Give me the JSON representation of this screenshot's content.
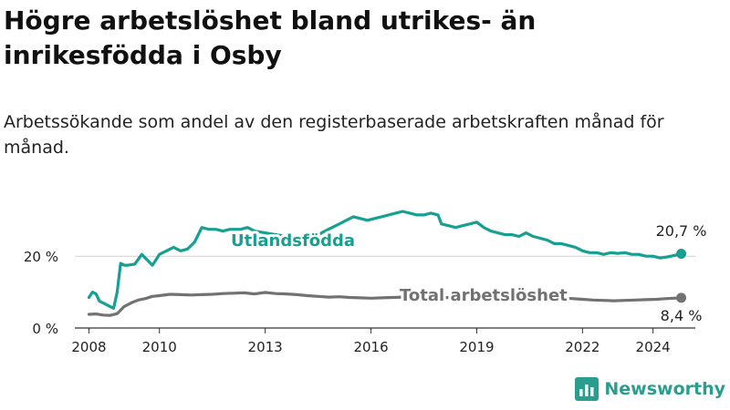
{
  "title": "Högre arbetslöshet bland utrikes- än inrikesfödda i Osby",
  "subtitle": "Arbetssökande som andel av den registerbaserade arbetskraften månad för månad.",
  "brand": {
    "name": "Newsworthy",
    "icon": "newsworthy-logo-icon"
  },
  "colors": {
    "foreign": "#17a092",
    "total": "#727272",
    "grid": "#d0d0d0",
    "axis": "#333333"
  },
  "chart_data": {
    "type": "line",
    "title": "Högre arbetslöshet bland utrikes- än inrikesfödda i Osby",
    "xlabel": "",
    "ylabel": "",
    "xlim": [
      2007.6,
      2025.2
    ],
    "ylim": [
      0,
      33
    ],
    "x_ticks": [
      2008,
      2010,
      2013,
      2016,
      2019,
      2022,
      2024
    ],
    "x_tick_labels": [
      "2008",
      "2010",
      "2013",
      "2016",
      "2019",
      "2022",
      "2024"
    ],
    "y_ticks": [
      0,
      20
    ],
    "y_tick_labels": [
      "0 %",
      "20 %"
    ],
    "grid": "horizontal",
    "series": [
      {
        "name": "Utlandsfödda",
        "color": "#17a092",
        "end_label": "20,7 %",
        "x": [
          2008.0,
          2008.1,
          2008.2,
          2008.3,
          2008.4,
          2008.5,
          2008.6,
          2008.7,
          2008.8,
          2008.9,
          2009.0,
          2009.1,
          2009.3,
          2009.5,
          2009.7,
          2009.8,
          2009.9,
          2010.0,
          2010.2,
          2010.4,
          2010.6,
          2010.8,
          2011.0,
          2011.2,
          2011.4,
          2011.6,
          2011.8,
          2012.0,
          2012.3,
          2012.5,
          2012.7,
          2013.0,
          2013.3,
          2013.6,
          2013.9,
          2014.2,
          2014.5,
          2014.7,
          2014.9,
          2015.1,
          2015.3,
          2015.5,
          2015.7,
          2015.9,
          2016.1,
          2016.3,
          2016.5,
          2016.7,
          2016.9,
          2017.1,
          2017.3,
          2017.5,
          2017.7,
          2017.9,
          2018.0,
          2018.2,
          2018.4,
          2018.6,
          2018.8,
          2019.0,
          2019.2,
          2019.4,
          2019.6,
          2019.8,
          2020.0,
          2020.2,
          2020.4,
          2020.6,
          2020.8,
          2021.0,
          2021.2,
          2021.4,
          2021.6,
          2021.8,
          2022.0,
          2022.2,
          2022.4,
          2022.6,
          2022.8,
          2023.0,
          2023.2,
          2023.4,
          2023.6,
          2023.8,
          2024.0,
          2024.2,
          2024.4,
          2024.6,
          2024.8
        ],
        "values": [
          8.5,
          10.0,
          9.5,
          7.5,
          7.0,
          6.5,
          6.0,
          5.5,
          10.0,
          18.0,
          17.5,
          17.5,
          17.8,
          20.5,
          18.5,
          17.5,
          19.0,
          20.5,
          21.5,
          22.5,
          21.5,
          22.0,
          24.0,
          28.0,
          27.5,
          27.5,
          27.0,
          27.5,
          27.5,
          28.0,
          27.0,
          26.5,
          26.0,
          25.5,
          25.5,
          25.0,
          26.0,
          27.0,
          28.0,
          29.0,
          30.0,
          31.0,
          30.5,
          30.0,
          30.5,
          31.0,
          31.5,
          32.0,
          32.5,
          32.0,
          31.5,
          31.5,
          32.0,
          31.5,
          29.0,
          28.5,
          28.0,
          28.5,
          29.0,
          29.5,
          28.0,
          27.0,
          26.5,
          26.0,
          26.0,
          25.5,
          26.5,
          25.5,
          25.0,
          24.5,
          23.5,
          23.5,
          23.0,
          22.5,
          21.5,
          21.0,
          21.0,
          20.5,
          21.0,
          20.8,
          21.0,
          20.5,
          20.5,
          20.0,
          20.0,
          19.5,
          19.8,
          20.2,
          20.7
        ]
      },
      {
        "name": "Total arbetslöshet",
        "color": "#727272",
        "end_label": "8,4 %",
        "x": [
          2008.0,
          2008.2,
          2008.4,
          2008.6,
          2008.8,
          2009.0,
          2009.2,
          2009.4,
          2009.6,
          2009.8,
          2010.0,
          2010.3,
          2010.6,
          2010.9,
          2011.2,
          2011.5,
          2011.8,
          2012.1,
          2012.4,
          2012.7,
          2013.0,
          2013.3,
          2013.6,
          2013.9,
          2014.2,
          2014.5,
          2014.8,
          2015.1,
          2015.4,
          2015.7,
          2016.0,
          2016.3,
          2016.6,
          2016.9,
          2017.2,
          2017.5,
          2017.8,
          2018.1,
          2018.4,
          2018.7,
          2019.0,
          2019.3,
          2019.6,
          2019.9,
          2020.2,
          2020.5,
          2020.8,
          2021.1,
          2021.4,
          2021.7,
          2022.0,
          2022.3,
          2022.6,
          2022.9,
          2023.2,
          2023.5,
          2023.8,
          2024.1,
          2024.4,
          2024.8
        ],
        "values": [
          3.8,
          3.9,
          3.6,
          3.5,
          4.0,
          6.0,
          7.0,
          7.8,
          8.2,
          8.8,
          9.0,
          9.4,
          9.3,
          9.2,
          9.3,
          9.4,
          9.6,
          9.7,
          9.8,
          9.5,
          9.9,
          9.6,
          9.5,
          9.3,
          9.0,
          8.8,
          8.6,
          8.7,
          8.5,
          8.4,
          8.3,
          8.4,
          8.5,
          8.6,
          8.7,
          8.8,
          8.6,
          8.5,
          8.4,
          8.4,
          8.5,
          8.6,
          8.7,
          8.8,
          8.9,
          8.8,
          8.6,
          8.5,
          8.3,
          8.2,
          8.0,
          7.8,
          7.7,
          7.6,
          7.7,
          7.8,
          7.9,
          8.0,
          8.2,
          8.4
        ]
      }
    ]
  }
}
